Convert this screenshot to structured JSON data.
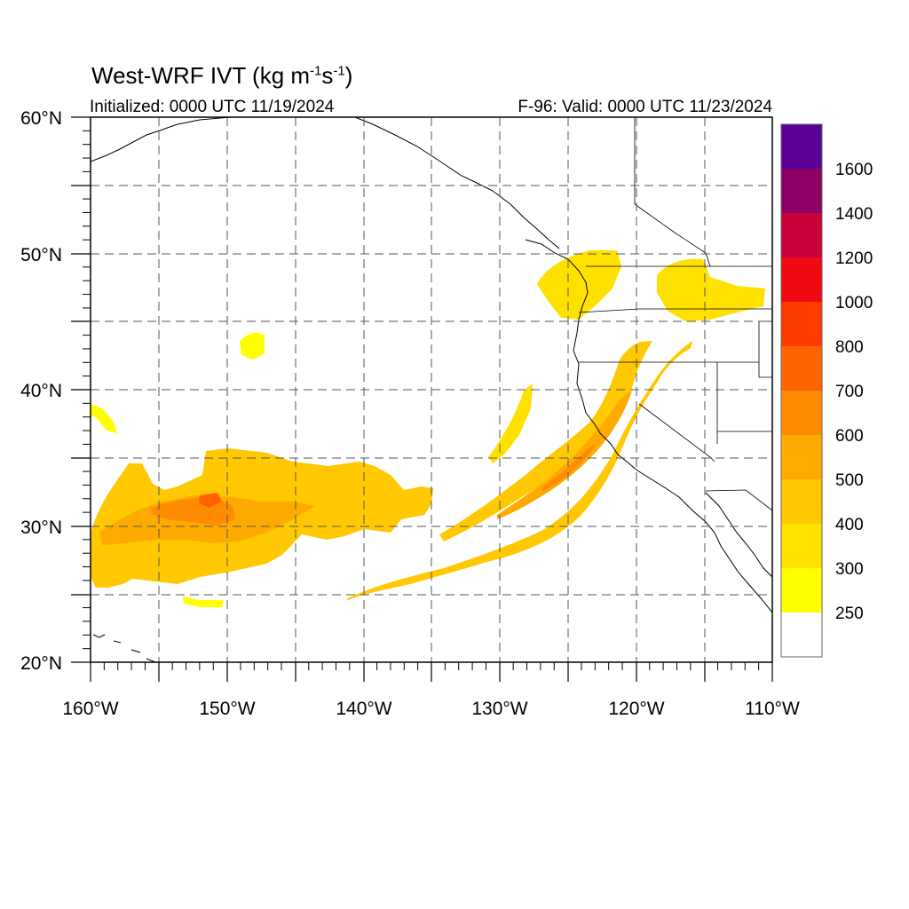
{
  "header": {
    "title_main": "West-WRF IVT (kg m",
    "title_exp1": "-1",
    "title_mid": "s",
    "title_exp2": "-1",
    "title_end": ")",
    "init": "Initialized: 0000 UTC 11/19/2024",
    "valid": "F-96: Valid: 0000 UTC 11/23/2024"
  },
  "map": {
    "lon_range": [
      -160,
      -110
    ],
    "lat_range": [
      20,
      60
    ],
    "lon_ticks": [
      {
        "value": -160,
        "label": "160°W"
      },
      {
        "value": -150,
        "label": "150°W"
      },
      {
        "value": -140,
        "label": "140°W"
      },
      {
        "value": -130,
        "label": "130°W"
      },
      {
        "value": -120,
        "label": "120°W"
      },
      {
        "value": -110,
        "label": "110°W"
      }
    ],
    "lat_ticks": [
      {
        "value": 60,
        "label": "60°N"
      },
      {
        "value": 50,
        "label": "50°N"
      },
      {
        "value": 40,
        "label": "40°N"
      },
      {
        "value": 30,
        "label": "30°N"
      },
      {
        "value": 20,
        "label": "20°N"
      }
    ],
    "grid_lons": [
      -155,
      -150,
      -145,
      -140,
      -135,
      -130,
      -125,
      -120,
      -115
    ],
    "grid_lats": [
      25,
      30,
      35,
      40,
      45,
      50,
      55
    ],
    "grid": true
  },
  "colorbar": {
    "levels": [
      "250",
      "300",
      "400",
      "500",
      "600",
      "700",
      "800",
      "1000",
      "1200",
      "1400",
      "1600"
    ],
    "colors": [
      "#ffffff",
      "#ffff00",
      "#ffe100",
      "#ffc800",
      "#ffaa00",
      "#ff8c00",
      "#ff6400",
      "#ff3c00",
      "#f00a14",
      "#c8003c",
      "#8c0064",
      "#5a0096"
    ]
  }
}
